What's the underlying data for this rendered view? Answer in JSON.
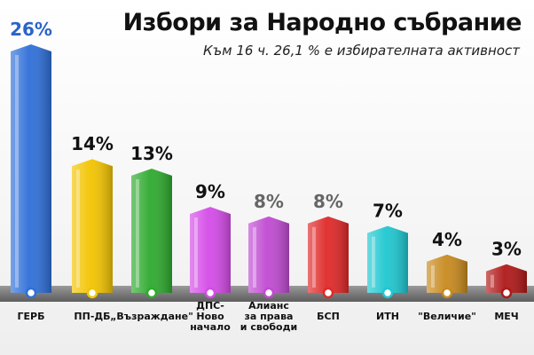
{
  "header": {
    "title": "Избори за Народно събрание",
    "subtitle": "Към 16 ч. 26,1 % е избирателната активност"
  },
  "chart_data": {
    "type": "bar",
    "title": "Избори за Народно събрание",
    "subtitle": "Към 16 ч. 26,1 % е избирателната активност",
    "xlabel": "",
    "ylabel": "",
    "ylim": [
      0,
      26
    ],
    "grid": false,
    "legend": "none",
    "categories": [
      [
        "ГЕРБ"
      ],
      [
        "ПП-ДБ"
      ],
      [
        "„Възраждане\""
      ],
      [
        "ДПС-",
        "Ново",
        "начало"
      ],
      [
        "Алианс",
        "за права",
        "и свободи"
      ],
      [
        "БСП"
      ],
      [
        "ИТН"
      ],
      [
        "\"Величие\""
      ],
      [
        "МЕЧ"
      ]
    ],
    "values": [
      26,
      14,
      13,
      9,
      8,
      8,
      7,
      4,
      3
    ],
    "value_labels": [
      "26%",
      "14%",
      "13%",
      "9%",
      "8%",
      "8%",
      "7%",
      "4%",
      "3%"
    ],
    "colors": [
      "#2f6fd8",
      "#f2c400",
      "#2eaa2e",
      "#d44be8",
      "#c04ad2",
      "#e02828",
      "#1ec7d0",
      "#c88a1e",
      "#b01818"
    ],
    "label_colors": [
      "#2a64c8",
      "#111111",
      "#111111",
      "#111111",
      "#666666",
      "#666666",
      "#111111",
      "#111111",
      "#111111"
    ]
  }
}
